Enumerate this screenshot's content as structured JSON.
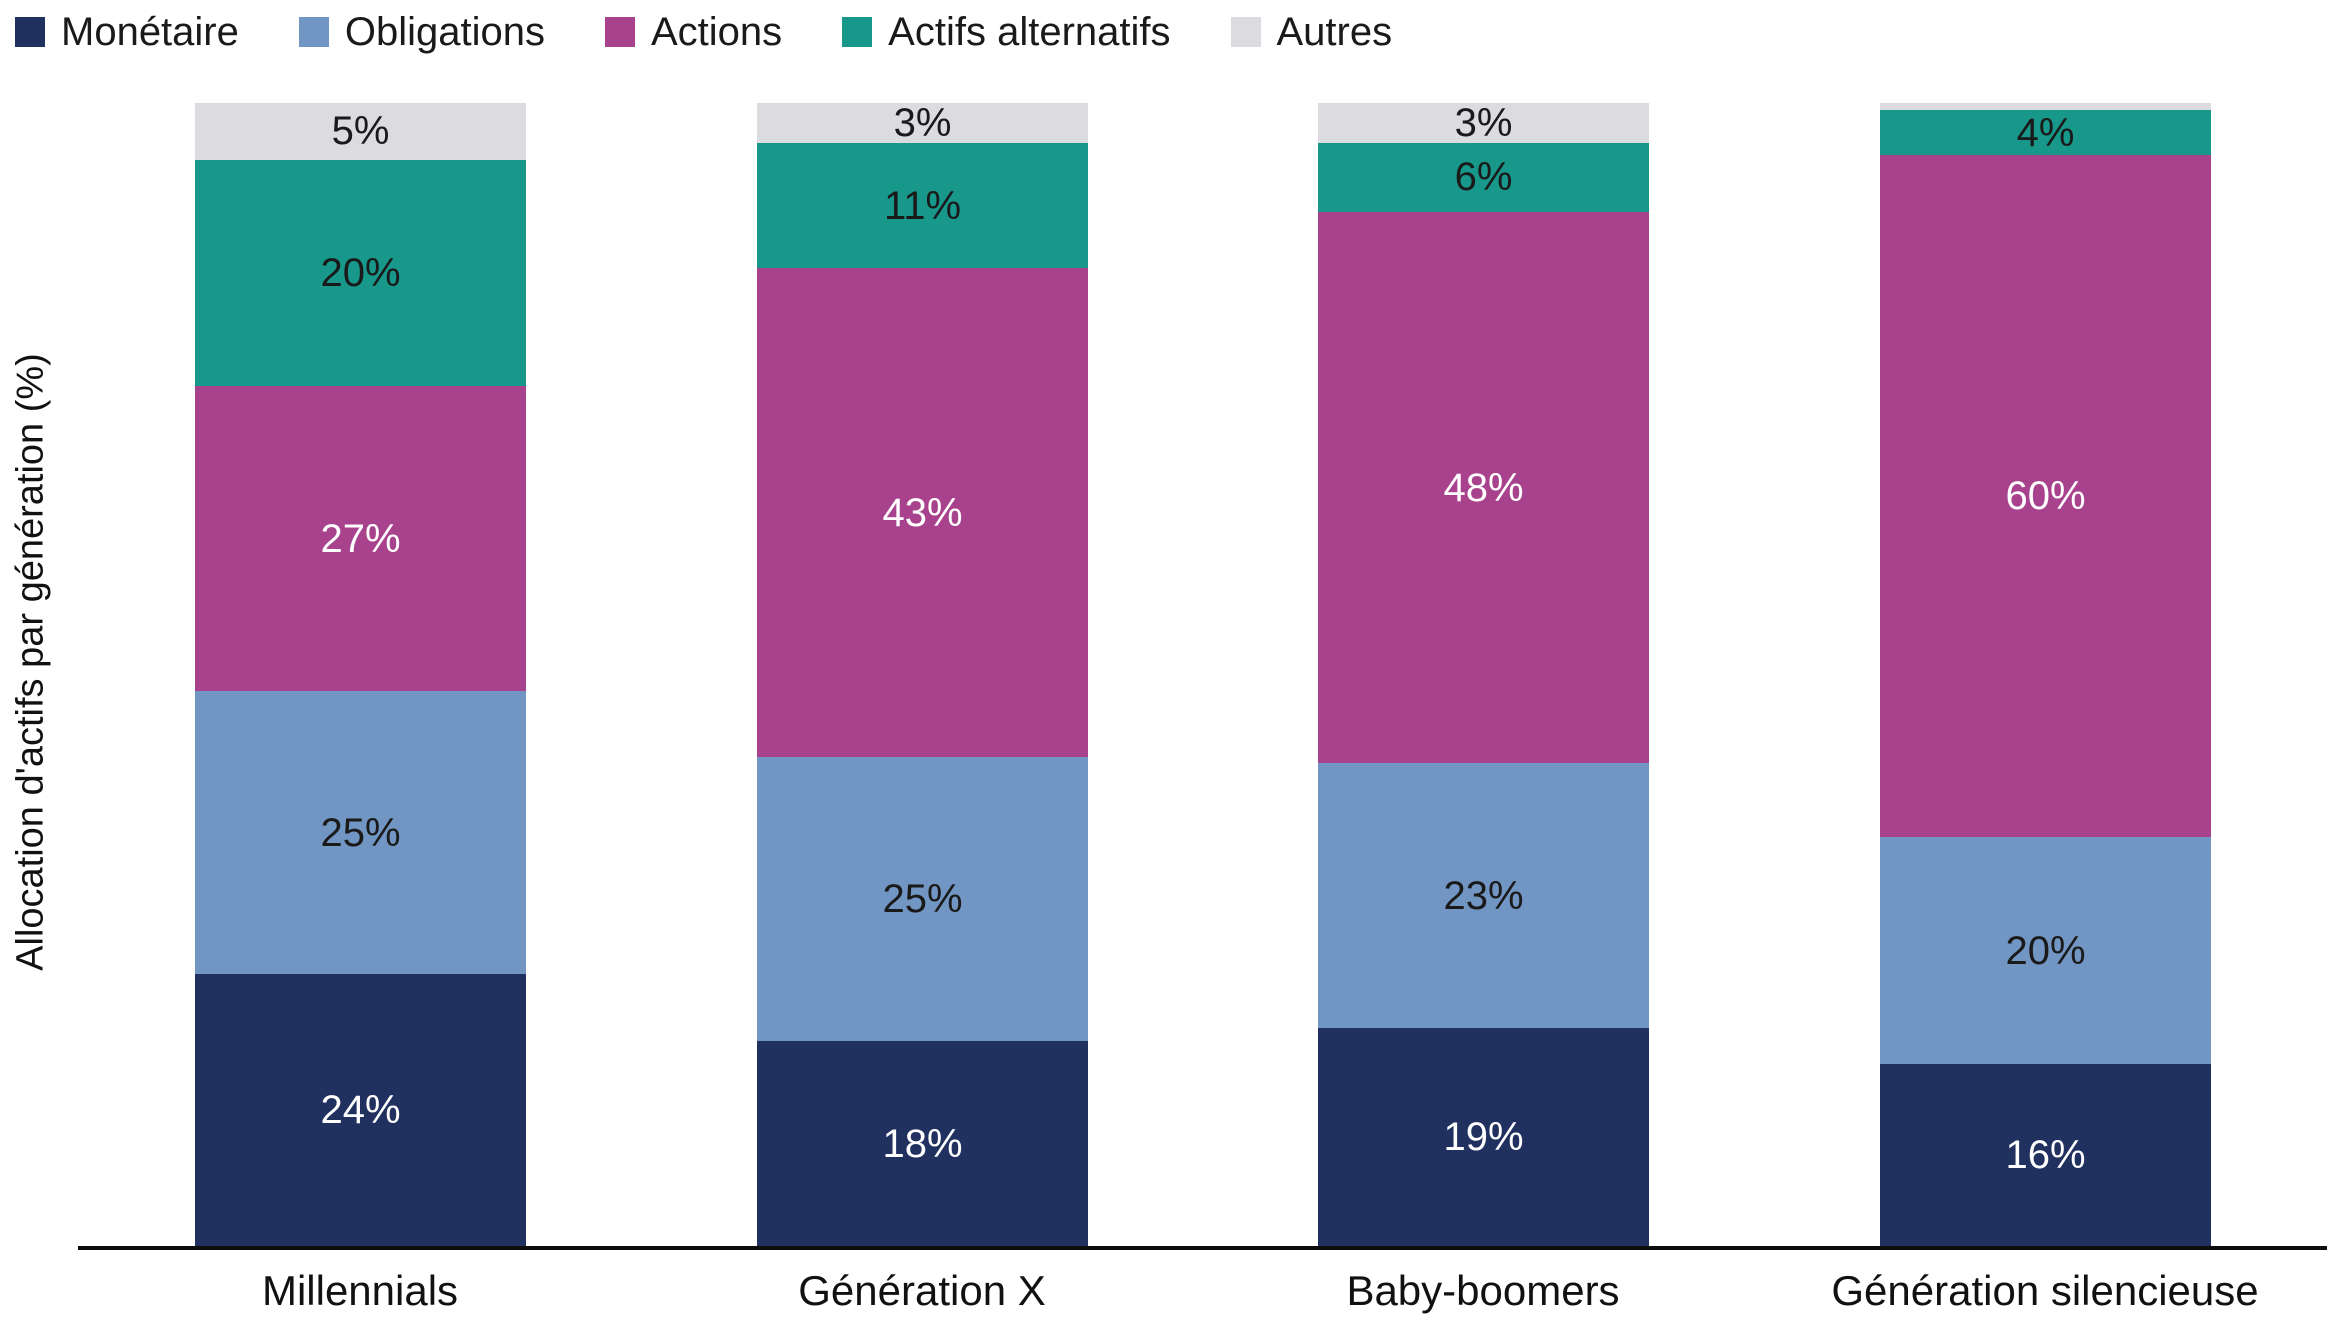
{
  "y_axis": {
    "label": "Allocation d'actifs par génération (%)"
  },
  "chart_data": {
    "type": "bar",
    "subtype": "stacked-100",
    "title": "",
    "xlabel": "",
    "ylabel": "Allocation d'actifs par génération (%)",
    "ylim": [
      0,
      100
    ],
    "grid": false,
    "legend_position": "top-left",
    "categories": [
      "Millennials",
      "Génération X",
      "Baby-boomers",
      "Génération silencieuse"
    ],
    "series": [
      {
        "name": "Monétaire",
        "color": "#20315f",
        "label_color": "#ffffff",
        "values": [
          24,
          18,
          19,
          16
        ],
        "labels": [
          "24%",
          "18%",
          "19%",
          "16%"
        ]
      },
      {
        "name": "Obligations",
        "color": "#7296c3",
        "label_color": "#1a1a1a",
        "values": [
          25,
          25,
          23,
          20
        ],
        "labels": [
          "25%",
          "25%",
          "23%",
          "20%"
        ]
      },
      {
        "name": "Actions",
        "color": "#a8428d",
        "label_color": "#ffffff",
        "values": [
          27,
          43,
          48,
          60
        ],
        "labels": [
          "27%",
          "43%",
          "48%",
          "60%"
        ]
      },
      {
        "name": "Actifs alternatifs",
        "color": "#17988b",
        "label_color": "#1a1a1a",
        "values": [
          20,
          11,
          6,
          4
        ],
        "labels": [
          "20%",
          "11%",
          "6%",
          "4%"
        ]
      },
      {
        "name": "Autres",
        "color": "#dcdbe0",
        "label_color": "#1a1a1a",
        "values": [
          5,
          3,
          3,
          0.6
        ],
        "labels": [
          "5%",
          "3%",
          "3%",
          ""
        ]
      }
    ],
    "stack_order_top_to_bottom": [
      "Autres",
      "Actifs alternatifs",
      "Actions",
      "Obligations",
      "Monétaire"
    ]
  }
}
